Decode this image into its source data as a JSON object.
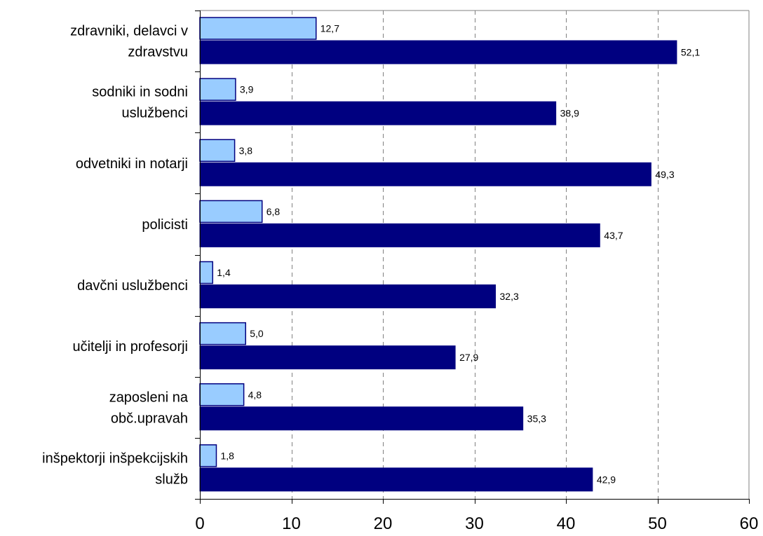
{
  "chart_data": {
    "type": "bar",
    "orientation": "horizontal",
    "title": "",
    "xlabel": "",
    "ylabel": "",
    "categories": [
      [
        "zdravniki, delavci v",
        "zdravstvu"
      ],
      [
        "sodniki in sodni",
        "uslužbenci"
      ],
      [
        "odvetniki in notarji"
      ],
      [
        "policisti"
      ],
      [
        "davčni uslužbenci"
      ],
      [
        "učitelji in profesorji"
      ],
      [
        "zaposleni na",
        "obč.upravah"
      ],
      [
        "inšpektorji inšpekcijskih",
        "služb"
      ]
    ],
    "series": [
      {
        "color": "#99ccff",
        "values": [
          12.7,
          3.9,
          3.8,
          6.8,
          1.4,
          5.0,
          4.8,
          1.8
        ],
        "labels": [
          "12,7",
          "3,9",
          "3,8",
          "6,8",
          "1,4",
          "5,0",
          "4,8",
          "1,8"
        ]
      },
      {
        "color": "#000080",
        "values": [
          52.1,
          38.9,
          49.3,
          43.7,
          32.3,
          27.9,
          35.3,
          42.9
        ],
        "labels": [
          "52,1",
          "38,9",
          "49,3",
          "43,7",
          "32,3",
          "27,9",
          "35,3",
          "42,9"
        ]
      }
    ],
    "xlim": [
      0,
      60
    ],
    "xticks": [
      0,
      10,
      20,
      30,
      40,
      50,
      60
    ],
    "grid": "vertical-dashed",
    "legend": "none"
  }
}
